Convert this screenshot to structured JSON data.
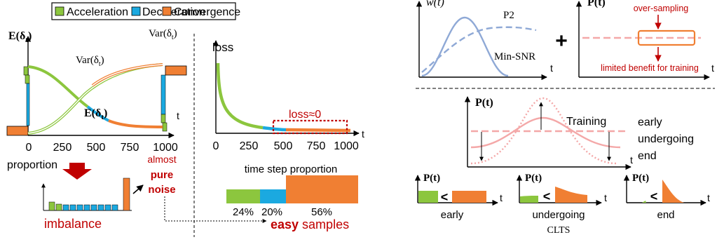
{
  "colors": {
    "green": "#8cc63e",
    "blue": "#1ba9e0",
    "orange": "#f07f33",
    "darkred": "#c00000",
    "pink": "#f4a8a8",
    "steel": "#8fa9d6"
  },
  "legend": {
    "items": [
      {
        "label": "Acceleration",
        "color": "#8cc63e"
      },
      {
        "label": "Deceleration",
        "color": "#1ba9e0"
      },
      {
        "label": "Convergence",
        "color": "#f07f33"
      }
    ]
  },
  "panel_stats": {
    "e_label": "E(δ",
    "sub_t": "t",
    "close_paren": ")",
    "var_label": "Var(δ",
    "t_axis": "t",
    "ticks": [
      "0",
      "250",
      "500",
      "750",
      "1000"
    ]
  },
  "panel_loss": {
    "ylabel": "loss",
    "t_axis": "t",
    "ticks": [
      "0",
      "250",
      "500",
      "750",
      "1000"
    ],
    "annotation": "loss≈0"
  },
  "proportion": {
    "label": "proportion",
    "imbalance": "imbalance",
    "noise_line1": "almost",
    "noise_line2": "pure",
    "noise_line3": "noise"
  },
  "time_step": {
    "title": "time step proportion",
    "segments": [
      {
        "label": "24%",
        "value": 24,
        "color": "#8cc63e"
      },
      {
        "label": "20%",
        "value": 20,
        "color": "#1ba9e0"
      },
      {
        "label": "56%",
        "value": 56,
        "color": "#f07f33"
      }
    ]
  },
  "easy": {
    "bold": "easy",
    "rest": " samples"
  },
  "right_top": {
    "w_label": "w(t)",
    "p2": "P2",
    "minsnr": "Min-SNR",
    "plus": "+",
    "p_label": "P(t)",
    "oversampling": "over-sampling",
    "limited": "limited benefit for training",
    "t_axis": "t"
  },
  "right_mid": {
    "p_label": "P(t)",
    "training": "Training",
    "early": "early",
    "undergoing": "undergoing",
    "end": "end",
    "t_axis": "t"
  },
  "right_bottom": {
    "p_label": "P(t)",
    "lt": "<",
    "t_axis": "t",
    "panels": [
      "early",
      "undergoing",
      "end"
    ],
    "clts": "CLTS"
  }
}
